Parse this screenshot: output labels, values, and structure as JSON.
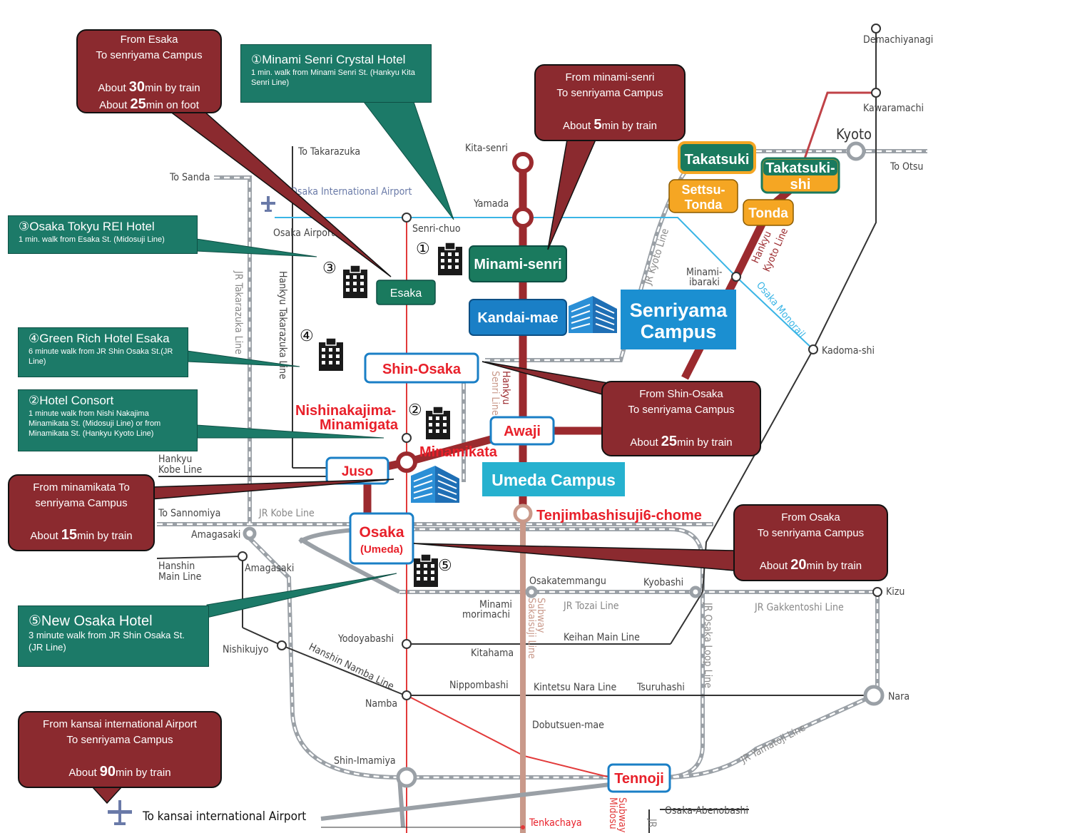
{
  "stations": {
    "demachiyanagi": "Demachiyanagi",
    "kawaramachi": "Kawaramachi",
    "kyoto": "Kyoto",
    "to_otsu": "To Otsu",
    "kita_senri": "Kita-senri",
    "yamada": "Yamada",
    "senri_chuo": "Senri-chuo",
    "to_takarazuka": "To Takarazuka",
    "to_sanda": "To Sanda",
    "osaka_airport": "Osaka Airport",
    "osaka_intl_airport": "Osaka International Airport",
    "minami_ibaraki": [
      "Minami-",
      "ibaraki"
    ],
    "kadoma_shi": "Kadoma-shi",
    "hankyu_kobe_line": [
      "Hankyu",
      "Kobe Line"
    ],
    "to_sannomiya": "To Sannomiya",
    "jr_kobe_line": "JR Kobe Line",
    "amagasaki_jr": "Amagasaki",
    "hanshin_main_line": [
      "Hanshin",
      "Main Line"
    ],
    "amagasaki_hanshin": "Amagasaki",
    "osakatemmangu": "Osakatemmangu",
    "kyobashi": "Kyobashi",
    "kizu": "Kizu",
    "minami_morimachi": [
      "Minami",
      "morimachi"
    ],
    "jr_tozai_line": "JR Tozai Line",
    "jr_gakkentoshi_line": "JR Gakkentoshi Line",
    "yodoyabashi": "Yodoyabashi",
    "keihan_main_line": "Keihan Main Line",
    "nishikujyo": "Nishikujyo",
    "kitahama": "Kitahama",
    "hanshin_namba_line": "Hanshin Namba Line",
    "nippombashi": "Nippombashi",
    "kintetsu_nara_line": "Kintetsu Nara Line",
    "tsuruhashi": "Tsuruhashi",
    "namba": "Namba",
    "nara": "Nara",
    "dobutsuen_mae": "Dobutsuen-mae",
    "jr_yamatoji_line": "JR Yamatoji Line",
    "shin_imamiya": "Shin-Imamiya",
    "osaka_abenobashi": "Osaka-Abenobashi",
    "tenkachaya": "Tenkachaya",
    "to_kansai_airport": "To kansai international Airport",
    "jr_takarazuka_line": "JR Takarazuka Line",
    "hankyu_takarazuka_line": "Hankyu Takarazuka Line",
    "jr_kyoto_line": "JR Kyoto Line",
    "hankyu_kyoto_line": [
      "Hankyu",
      "Kyoto Line"
    ],
    "osaka_monorail": "Osaka Monorail",
    "jr_osaka_loop_line": "JR Osaka Loop Line",
    "hankyu_senri_line": [
      "Hankyu",
      "Senri Line"
    ],
    "subway_sakaisuji_line": [
      "Subway",
      "Sakaisuji Line"
    ],
    "subway_midosuji": [
      "Subway",
      "Midosu"
    ],
    "jr": [
      "JR"
    ]
  },
  "badges": {
    "takatsuki": "Takatsuki",
    "takatsuki_shi": [
      "Takatsuki-",
      "shi"
    ],
    "settsu_tonda": [
      "Settsu-",
      "Tonda"
    ],
    "tonda": "Tonda",
    "minami_senri": "Minami-senri",
    "kandai_mae": "Kandai-mae",
    "esaka": "Esaka",
    "shin_osaka": "Shin-Osaka",
    "awaji": "Awaji",
    "juso": "Juso",
    "osaka": "Osaka",
    "umeda": "(Umeda)",
    "tennoji": "Tennoji",
    "nishinakajima": [
      "Nishinakajima-",
      "Minamigata"
    ],
    "minamikata": "Minamikata",
    "tenjimbashisuji": "Tenjimbashisuji6-chome"
  },
  "campuses": {
    "senriyama": [
      "Senriyama",
      "Campus"
    ],
    "umeda": "Umeda Campus"
  },
  "hotel_markers": [
    "①",
    "②",
    "③",
    "④",
    "⑤"
  ],
  "callouts": {
    "esaka": {
      "l1": "From Esaka",
      "l2": "To senriyama Campus",
      "a1": "About ",
      "n1": "30",
      "u1": "min by train",
      "a2": "About ",
      "n2": "25",
      "u2": "min on foot"
    },
    "minami_senri": {
      "l1": "From minami-senri",
      "l2": "To senriyama Campus",
      "a": "About ",
      "n": "5",
      "u": "min by train"
    },
    "shin_osaka": {
      "l1": "From Shin-Osaka",
      "l2": "To senriyama Campus",
      "a": "About ",
      "n": "25",
      "u": "min by train"
    },
    "minamikata": {
      "l1": "From minamikata To",
      "l2": "senriyama Campus",
      "a": "About ",
      "n": "15",
      "u": "min by train"
    },
    "osaka": {
      "l1": "From Osaka",
      "l2": "To senriyama Campus",
      "a": "About ",
      "n": "20",
      "u": "min by train"
    },
    "kansai": {
      "l1": "From kansai international Airport",
      "l2": "To senriyama Campus",
      "a": "About ",
      "n": "90",
      "u": "min by train"
    }
  },
  "hotels": {
    "h1": {
      "title": "①Minami Senri Crystal Hotel",
      "desc": "1 min. walk from Minami Senri St. (Hankyu Kita Senri Line)"
    },
    "h3": {
      "title": "③Osaka Tokyu REI Hotel",
      "desc": "1 min. walk from Esaka St. (Midosuji Line)"
    },
    "h4": {
      "title": "④Green Rich Hotel Esaka",
      "desc": "6 minute walk from JR Shin Osaka St.(JR Line)"
    },
    "h2": {
      "title": "②Hotel Consort",
      "desc": "1 minute walk from Nishi Nakajima Minamikata St. (Midosuji Line) or from Minamikata St. (Hankyu Kyoto Line)"
    },
    "h5": {
      "title": "⑤New Osaka Hotel",
      "desc": "3 minute walk from JR Shin Osaka St. (JR Line)"
    }
  },
  "colors": {
    "callout_red": "#8b2a2f",
    "callout_green": "#1c7a68",
    "hankyu_line": "#9b2a2e",
    "midosuji_line": "#e23a3a",
    "sakaisuji_line": "#c9998a",
    "jr_line": "#9aa0a6",
    "monorail": "#3ab5e6",
    "campus_blue": "#1b8fd1",
    "umeda_campus": "#26b1cf",
    "badge_green": "#1a7a5e",
    "badge_blue": "#1a7fc6",
    "badge_orange": "#f5a623",
    "station_red_text": "#e8202a"
  }
}
